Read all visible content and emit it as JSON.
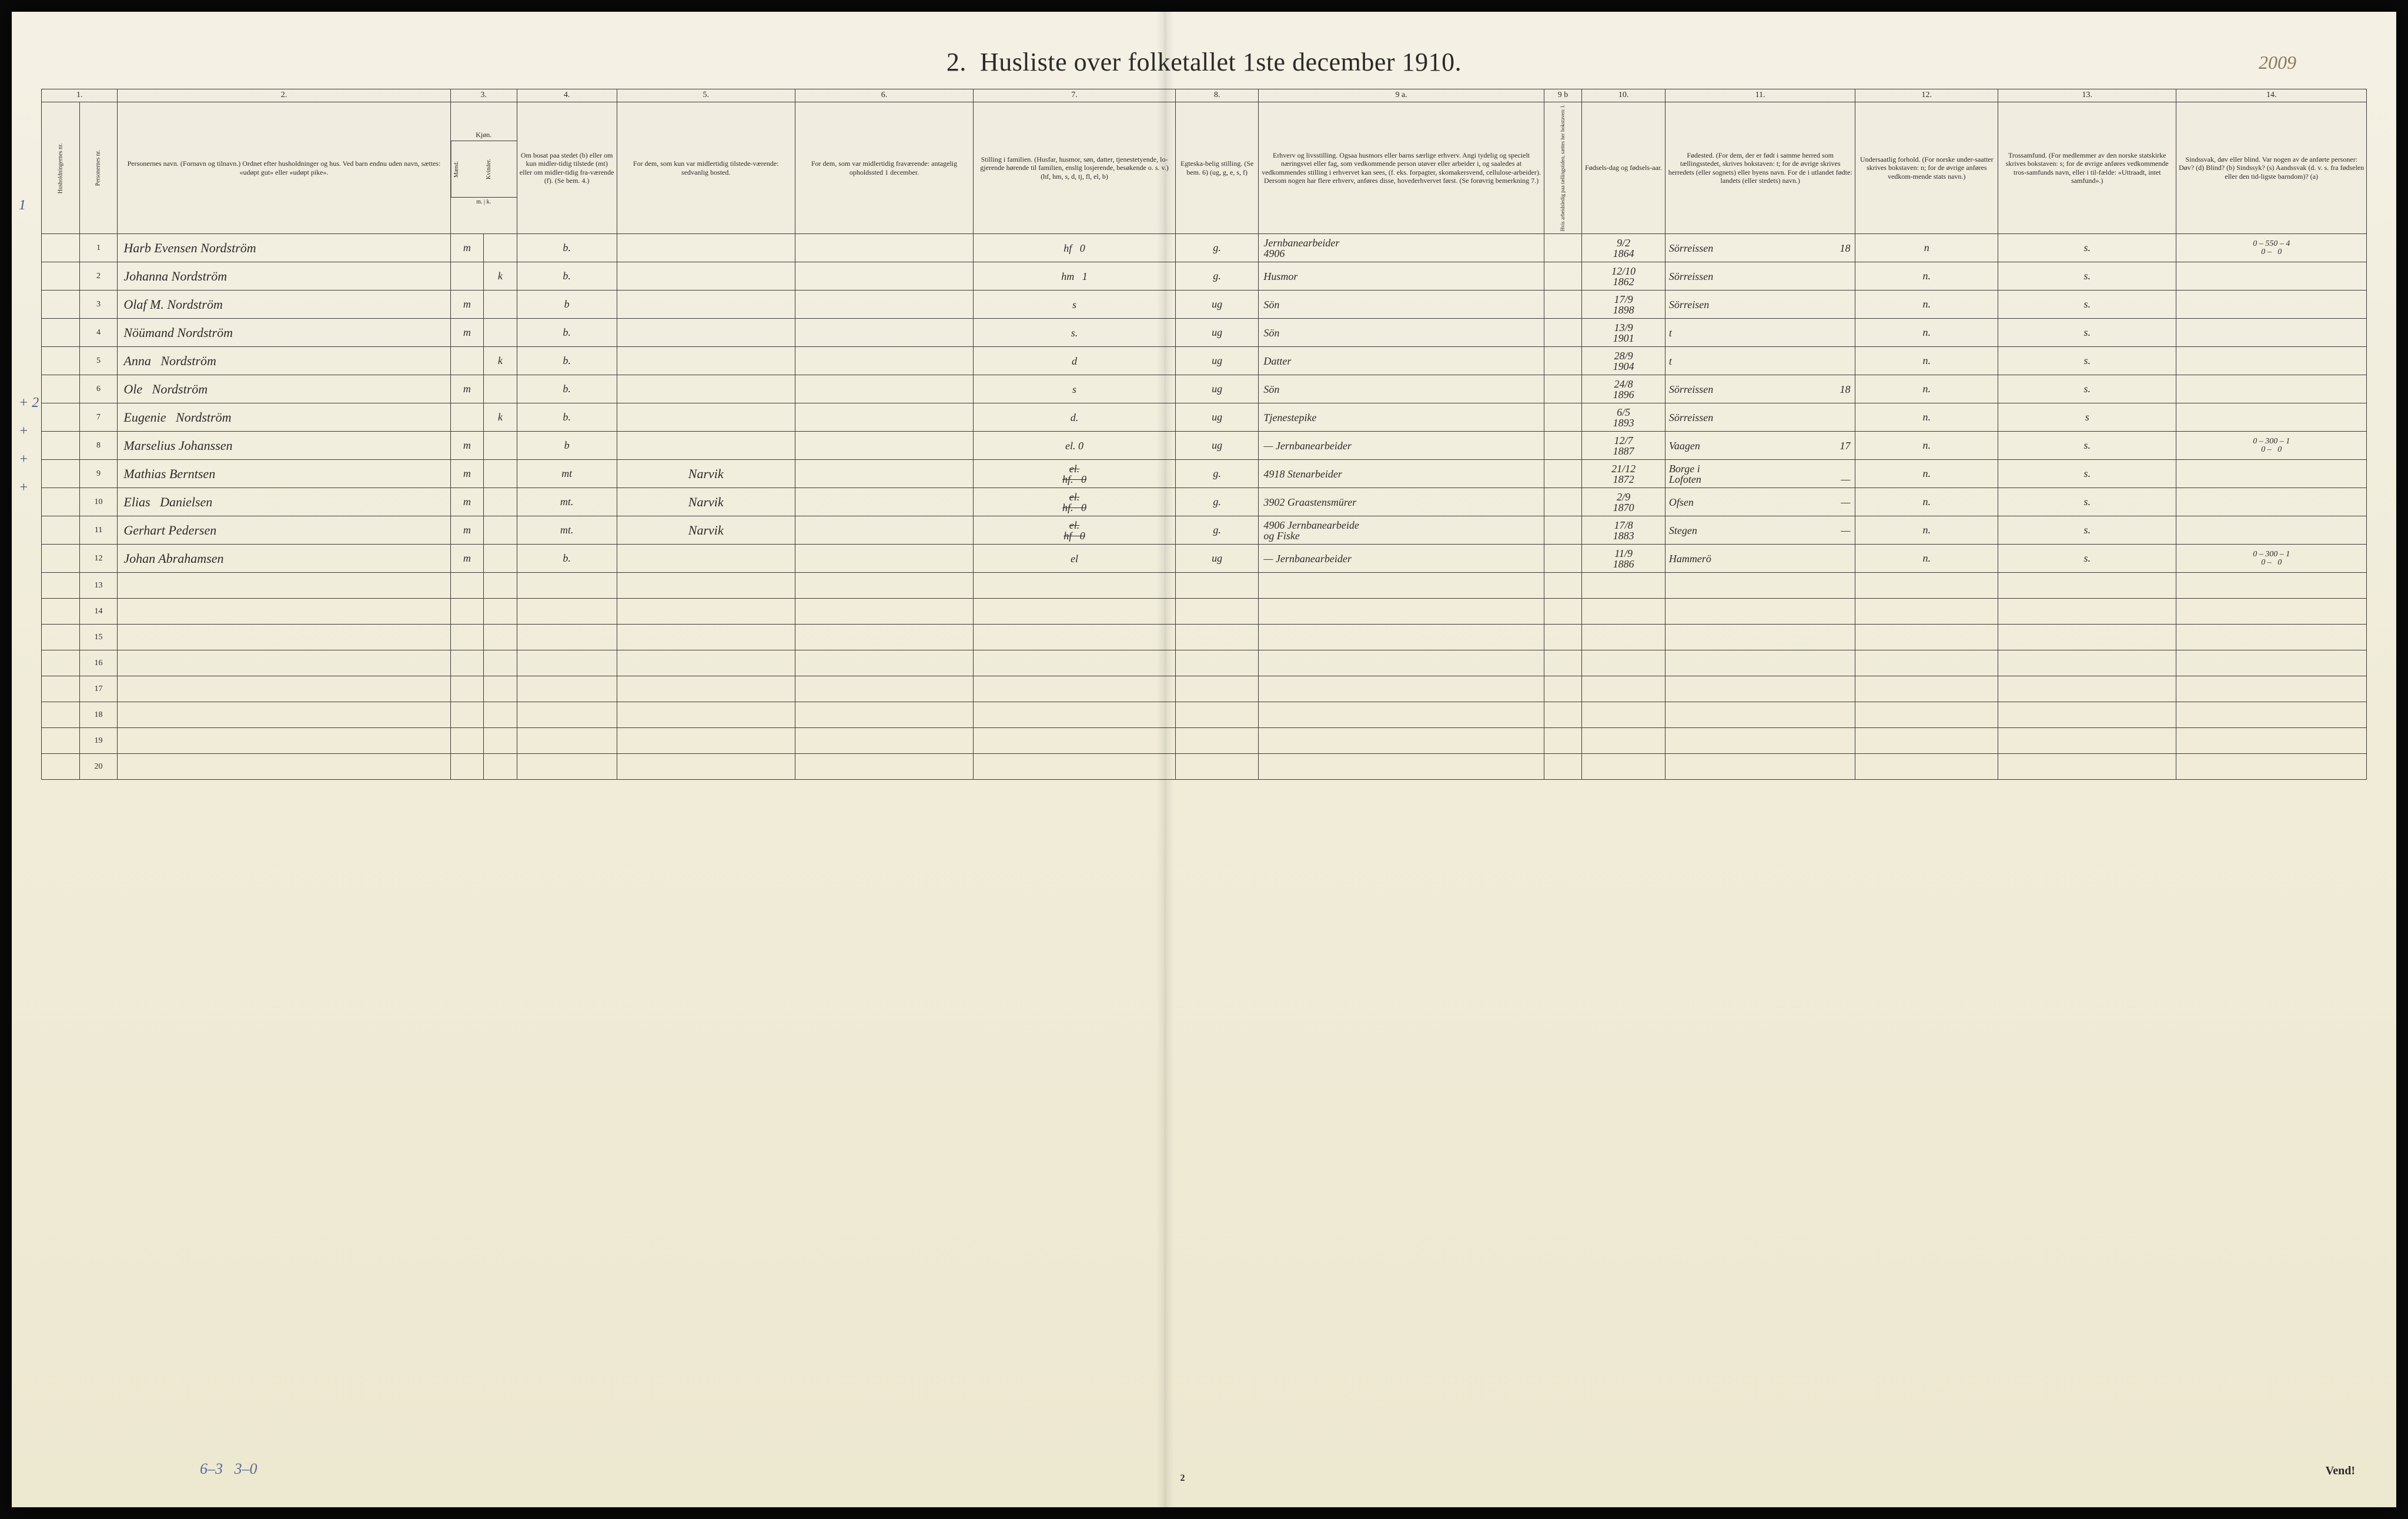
{
  "title": "2.  Husliste over folketallet 1ste december 1910.",
  "page_annotation": "2009",
  "footer_note": "6–3   3–0",
  "page_num_bottom": "2",
  "vend": "Vend!",
  "col_numbers": [
    "1.",
    "2.",
    "3.",
    "4.",
    "5.",
    "6.",
    "7.",
    "8.",
    "9 a.",
    "9 b",
    "10.",
    "11.",
    "12.",
    "13.",
    "14."
  ],
  "headers": {
    "c1a": "Husholdningernes nr.",
    "c1b": "Personernes nr.",
    "c2": "Personernes navn.\n(Fornavn og tilnavn.)\nOrdnet efter husholdninger og hus.\nVed barn endnu uden navn, sættes: «udøpt gut» eller «udøpt pike».",
    "c3": "Kjøn.",
    "c3a": "Mænd.",
    "c3b": "Kvinder.",
    "c3foot": "m. | k.",
    "c4": "Om bosat paa stedet (b) eller om kun midler-tidig tilstede (mt) eller om midler-tidig fra-værende (f).\n(Se bem. 4.)",
    "c5": "For dem, som kun var midlertidig tilstede-værende:\nsedvanlig bosted.",
    "c6": "For dem, som var midlertidig fraværende:\nantagelig opholdssted 1 december.",
    "c7": "Stilling i familien.\n(Husfar, husmor, søn, datter, tjenestetyende, lo-gjerende hørende til familien, enslig losjerende, besøkende o. s. v.)\n(hf, hm, s, d, tj, fl, el, b)",
    "c8": "Egteska-belig stilling.\n(Se bem. 6)\n(ug, g, e, s, f)",
    "c9a": "Erhverv og livsstilling.\nOgsaa husmors eller barns særlige erhverv. Angi tydelig og specielt næringsvei eller fag, som vedkommende person utøver eller arbeider i, og saaledes at vedkommendes stilling i erhvervet kan sees, (f. eks. forpagter, skomakersvend, cellulose-arbeider). Dersom nogen har flere erhverv, anføres disse, hovederhvervet først.\n(Se forøvrig bemerkning 7.)",
    "c9b": "Hvis arbeidsledig paa tællingstiden, sættes her bokstaven: l.",
    "c10": "Fødsels-dag og fødsels-aar.",
    "c11": "Fødested.\n(For dem, der er født i samme herred som tællingsstedet, skrives bokstaven: t; for de øvrige skrives herredets (eller sognets) eller byens navn. For de i utlandet fødte: landets (eller stedets) navn.)",
    "c12": "Undersaatlig forhold.\n(For norske under-saatter skrives bokstaven: n; for de øvrige anføres vedkom-mende stats navn.)",
    "c13": "Trossamfund.\n(For medlemmer av den norske statskirke skrives bokstaven: s; for de øvrige anføres vedkommende tros-samfunds navn, eller i til-fælde: «Uttraadt, intet samfund».)",
    "c14": "Sindssvak, døv eller blind.\nVar nogen av de anførte personer:\nDøv? (d)\nBlind? (b)\nSindssyk? (s)\nAandssvak (d. v. s. fra fødselen eller den tid-ligste barndom)? (a)"
  },
  "row_labels": {
    "r1": "1",
    "r8": "+ 2",
    "r9": "+",
    "r10": "+",
    "r11": "+",
    "r12": ""
  },
  "rows": [
    {
      "n": "1",
      "name": "Harb Evensen Nordström",
      "mk": "m",
      "b": "b.",
      "c5": "",
      "c6": "",
      "c7": "hf   0",
      "c8": "g.",
      "c9a": "Jernbanearbeider\n4906",
      "c10": "9/2\n1864",
      "c11": "Sörreissen",
      "c11b": "18",
      "c12": "n",
      "c13": "s.",
      "c14": "0 – 550 – 4\n0 –   0"
    },
    {
      "n": "2",
      "name": "Johanna Nordström",
      "mk": "k",
      "b": "b.",
      "c5": "",
      "c6": "",
      "c7": "hm   1",
      "c8": "g.",
      "c9a": "Husmor",
      "c10": "12/10\n1862",
      "c11": "Sörreissen",
      "c11b": "",
      "c12": "n.",
      "c13": "s.",
      "c14": ""
    },
    {
      "n": "3",
      "name": "Olaf M. Nordström",
      "mk": "m",
      "b": "b",
      "c5": "",
      "c6": "",
      "c7": "s",
      "c8": "ug",
      "c9a": "Sön",
      "c10": "17/9\n1898",
      "c11": "Sörreisen",
      "c11b": "",
      "c12": "n.",
      "c13": "s.",
      "c14": ""
    },
    {
      "n": "4",
      "name": "Nöümand Nordström",
      "mk": "m",
      "b": "b.",
      "c5": "",
      "c6": "",
      "c7": "s.",
      "c8": "ug",
      "c9a": "Sön",
      "c10": "13/9\n1901",
      "c11": "t",
      "c11b": "",
      "c12": "n.",
      "c13": "s.",
      "c14": ""
    },
    {
      "n": "5",
      "name": "Anna   Nordström",
      "mk": "k",
      "b": "b.",
      "c5": "",
      "c6": "",
      "c7": "d",
      "c8": "ug",
      "c9a": "Datter",
      "c10": "28/9\n1904",
      "c11": "t",
      "c11b": "",
      "c12": "n.",
      "c13": "s.",
      "c14": ""
    },
    {
      "n": "6",
      "name": "Ole   Nordström",
      "mk": "m",
      "b": "b.",
      "c5": "",
      "c6": "",
      "c7": "s",
      "c8": "ug",
      "c9a": "Sön",
      "c10": "24/8\n1896",
      "c11": "Sörreissen",
      "c11b": "18",
      "c12": "n.",
      "c13": "s.",
      "c14": ""
    },
    {
      "n": "7",
      "name": "Eugenie   Nordström",
      "mk": "k",
      "b": "b.",
      "c5": "",
      "c6": "",
      "c7": "d.",
      "c8": "ug",
      "c9a": "Tjenestepike",
      "c10": "6/5\n1893",
      "c11": "Sörreissen",
      "c11b": "",
      "c12": "n.",
      "c13": "s",
      "c14": ""
    },
    {
      "n": "8",
      "name": "Marselius Johanssen",
      "mk": "m",
      "b": "b",
      "c5": "",
      "c6": "",
      "c7": "el. 0",
      "c8": "ug",
      "c9a": "— Jernbanearbeider",
      "c10": "12/7\n1887",
      "c11": "Vaagen",
      "c11b": "17",
      "c12": "n.",
      "c13": "s.",
      "c14": "0 – 300 – 1\n0 –   0"
    },
    {
      "n": "9",
      "name": "Mathias Berntsen",
      "mk": "m",
      "b": "mt",
      "c5": "Narvik",
      "c6": "",
      "c7": "el.\nhf.   0",
      "c8": "g.",
      "c9a": "4918 Stenarbeider",
      "c10": "21/12\n1872",
      "c11": "Borge i\nLofoten",
      "c11b": "—",
      "c12": "n.",
      "c13": "s.",
      "c14": ""
    },
    {
      "n": "10",
      "name": "Elias   Danielsen",
      "mk": "m",
      "b": "mt.",
      "c5": "Narvik",
      "c6": "",
      "c7": "el.\nhf.   0",
      "c8": "g.",
      "c9a": "3902 Graastensmürer",
      "c10": "2/9\n1870",
      "c11": "Ofsen",
      "c11b": "—",
      "c12": "n.",
      "c13": "s.",
      "c14": ""
    },
    {
      "n": "11",
      "name": "Gerhart Pedersen",
      "mk": "m",
      "b": "mt.",
      "c5": "Narvik",
      "c6": "",
      "c7": "el.\nhf   0",
      "c8": "g.",
      "c9a": "4906 Jernbanearbeide\nog Fiske",
      "c10": "17/8\n1883",
      "c11": "Stegen",
      "c11b": "—",
      "c12": "n.",
      "c13": "s.",
      "c14": ""
    },
    {
      "n": "12",
      "name": "Johan Abrahamsen",
      "mk": "m",
      "b": "b.",
      "c5": "",
      "c6": "",
      "c7": "el",
      "c8": "ug",
      "c9a": "— Jernbanearbeider",
      "c10": "11/9\n1886",
      "c11": "Hammerö",
      "c11b": "",
      "c12": "n.",
      "c13": "s.",
      "c14": "0 – 300 – 1\n0 –   0"
    }
  ],
  "empty_rows": [
    "13",
    "14",
    "15",
    "16",
    "17",
    "18",
    "19",
    "20"
  ],
  "colors": {
    "paper": "#f0ecd8",
    "ink": "#2a2a2a",
    "pencil": "#5a6a9a",
    "faded": "#8a7a5a"
  }
}
